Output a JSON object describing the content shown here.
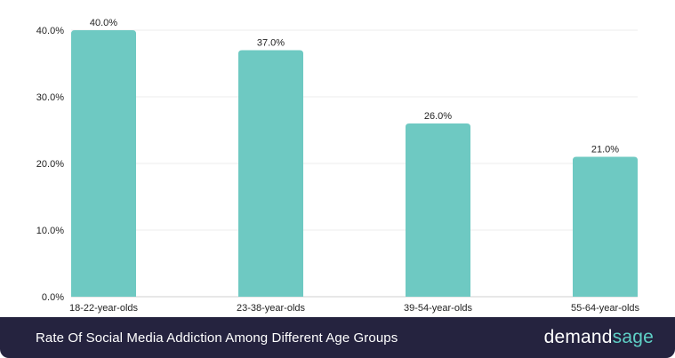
{
  "chart_data": {
    "type": "bar",
    "categories": [
      "18-22-year-olds",
      "23-38-year-olds",
      "39-54-year-olds",
      "55-64-year-olds"
    ],
    "values": [
      40.0,
      37.0,
      26.0,
      21.0
    ],
    "value_labels": [
      "40.0%",
      "37.0%",
      "26.0%",
      "21.0%"
    ],
    "y_ticks": [
      0,
      10,
      20,
      30,
      40
    ],
    "y_tick_labels": [
      "0.0%",
      "10.0%",
      "20.0%",
      "30.0%",
      "40.0%"
    ],
    "ylim": [
      0,
      40
    ],
    "grid": true,
    "bar_color": "#6ec9c2",
    "grid_color": "#ececec"
  },
  "footer": {
    "title": "Rate Of Social Media Addiction Among Different Age Groups",
    "background_color": "#25233f"
  },
  "brand": {
    "part1": "demand",
    "part2": "sage",
    "part1_color": "#ffffff",
    "part2_color": "#5fd0c6"
  }
}
